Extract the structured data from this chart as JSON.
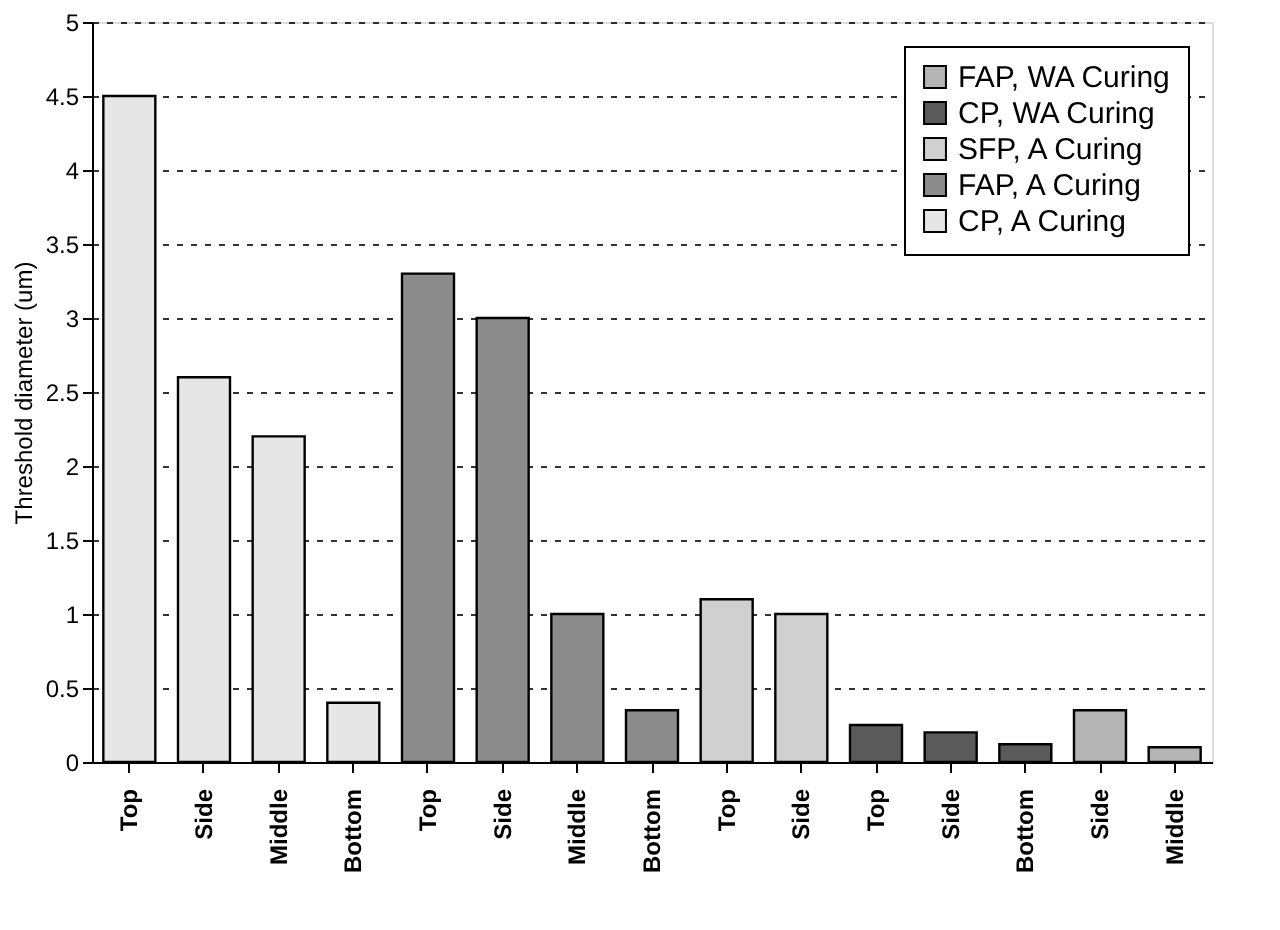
{
  "chart_data": {
    "type": "bar",
    "ylabel": "Threshold diameter (um)",
    "categories": [
      "Top",
      "Side",
      "Middle",
      "Bottom",
      "Top",
      "Side",
      "Middle",
      "Bottom",
      "Top",
      "Side",
      "Top",
      "Side",
      "Bottom",
      "Side",
      "Middle"
    ],
    "series": [
      {
        "name": "FAP, WA Curing",
        "color": "#b4b4b4",
        "values": [
          null,
          null,
          null,
          null,
          null,
          null,
          null,
          null,
          null,
          null,
          null,
          null,
          null,
          0.35,
          0.1
        ]
      },
      {
        "name": "CP, WA Curing",
        "color": "#5a5a5a",
        "values": [
          null,
          null,
          null,
          null,
          null,
          null,
          null,
          null,
          null,
          null,
          0.25,
          0.2,
          0.12,
          null,
          null
        ]
      },
      {
        "name": "SFP, A Curing",
        "color": "#d0d0d0",
        "values": [
          null,
          null,
          null,
          null,
          null,
          null,
          null,
          null,
          1.1,
          1.0,
          null,
          null,
          null,
          null,
          null
        ]
      },
      {
        "name": "FAP, A Curing",
        "color": "#8c8c8c",
        "values": [
          null,
          null,
          null,
          null,
          3.3,
          3.0,
          1.0,
          0.35,
          null,
          null,
          null,
          null,
          null,
          null,
          null
        ]
      },
      {
        "name": "CP, A Curing",
        "color": "#e6e6e6",
        "values": [
          4.5,
          2.6,
          2.2,
          0.4,
          null,
          null,
          null,
          null,
          null,
          null,
          null,
          null,
          null,
          null,
          null
        ]
      }
    ],
    "ylim": [
      0,
      5
    ],
    "yticks": [
      0,
      0.5,
      1,
      1.5,
      2,
      2.5,
      3,
      3.5,
      4,
      4.5,
      5
    ],
    "grid": "y",
    "legend": "top right"
  }
}
